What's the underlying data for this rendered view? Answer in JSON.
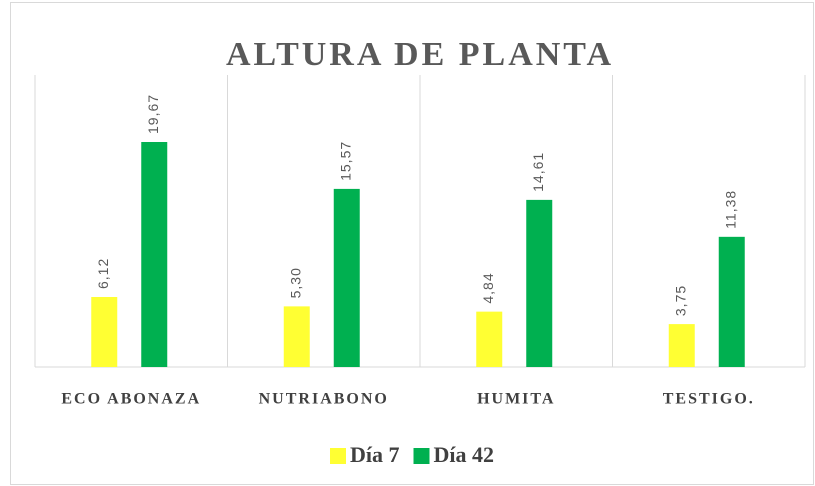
{
  "chart_data": {
    "type": "bar",
    "title": "ALTURA DE PLANTA",
    "categories": [
      "ECO ABONAZA",
      "NUTRIABONO",
      "HUMITA",
      "TESTIGO."
    ],
    "series": [
      {
        "name": "Día 7",
        "color": "#ffff33",
        "values": [
          6.12,
          5.3,
          4.84,
          3.75
        ],
        "value_labels": [
          "6,12",
          "5,30",
          "4,84",
          "3,75"
        ]
      },
      {
        "name": "Día 42",
        "color": "#00b050",
        "values": [
          19.67,
          15.57,
          14.61,
          11.38
        ],
        "value_labels": [
          "19,67",
          "15,57",
          "14,61",
          "11,38"
        ]
      }
    ],
    "legend": "bottom"
  }
}
